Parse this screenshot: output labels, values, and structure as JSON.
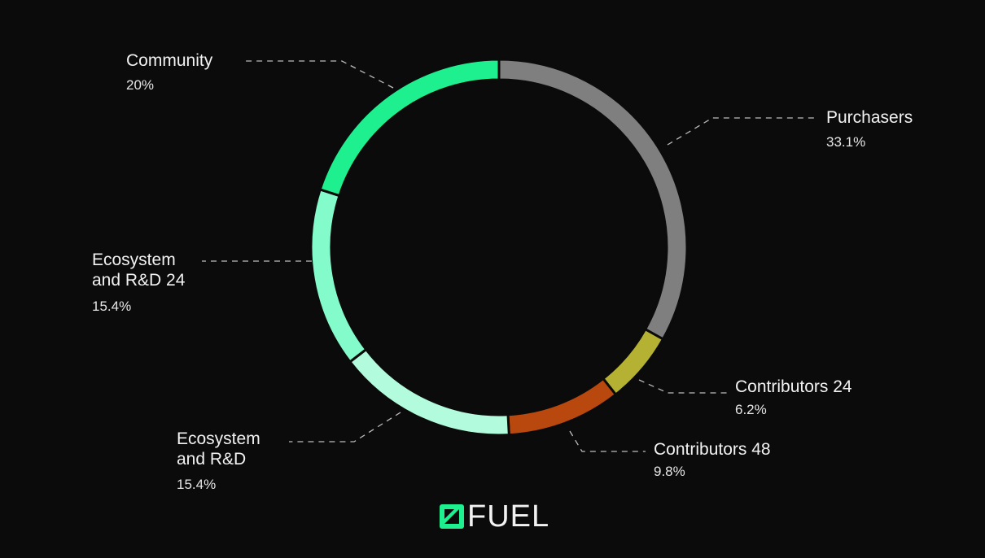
{
  "chart_data": {
    "type": "donut",
    "categories": [
      "Purchasers",
      "Contributors 24",
      "Contributors 48",
      "Ecosystem and R&D",
      "Ecosystem and R&D 24",
      "Community"
    ],
    "values": [
      33.1,
      6.2,
      9.8,
      15.4,
      15.4,
      20
    ],
    "value_labels": [
      "33.1%",
      "6.2%",
      "9.8%",
      "15.4%",
      "15.4%",
      "20%"
    ],
    "colors": [
      "#7f7f7f",
      "#b5b233",
      "#b8480e",
      "#b2fbdc",
      "#84fbca",
      "#1ef08f"
    ]
  },
  "logo": "FUEL"
}
